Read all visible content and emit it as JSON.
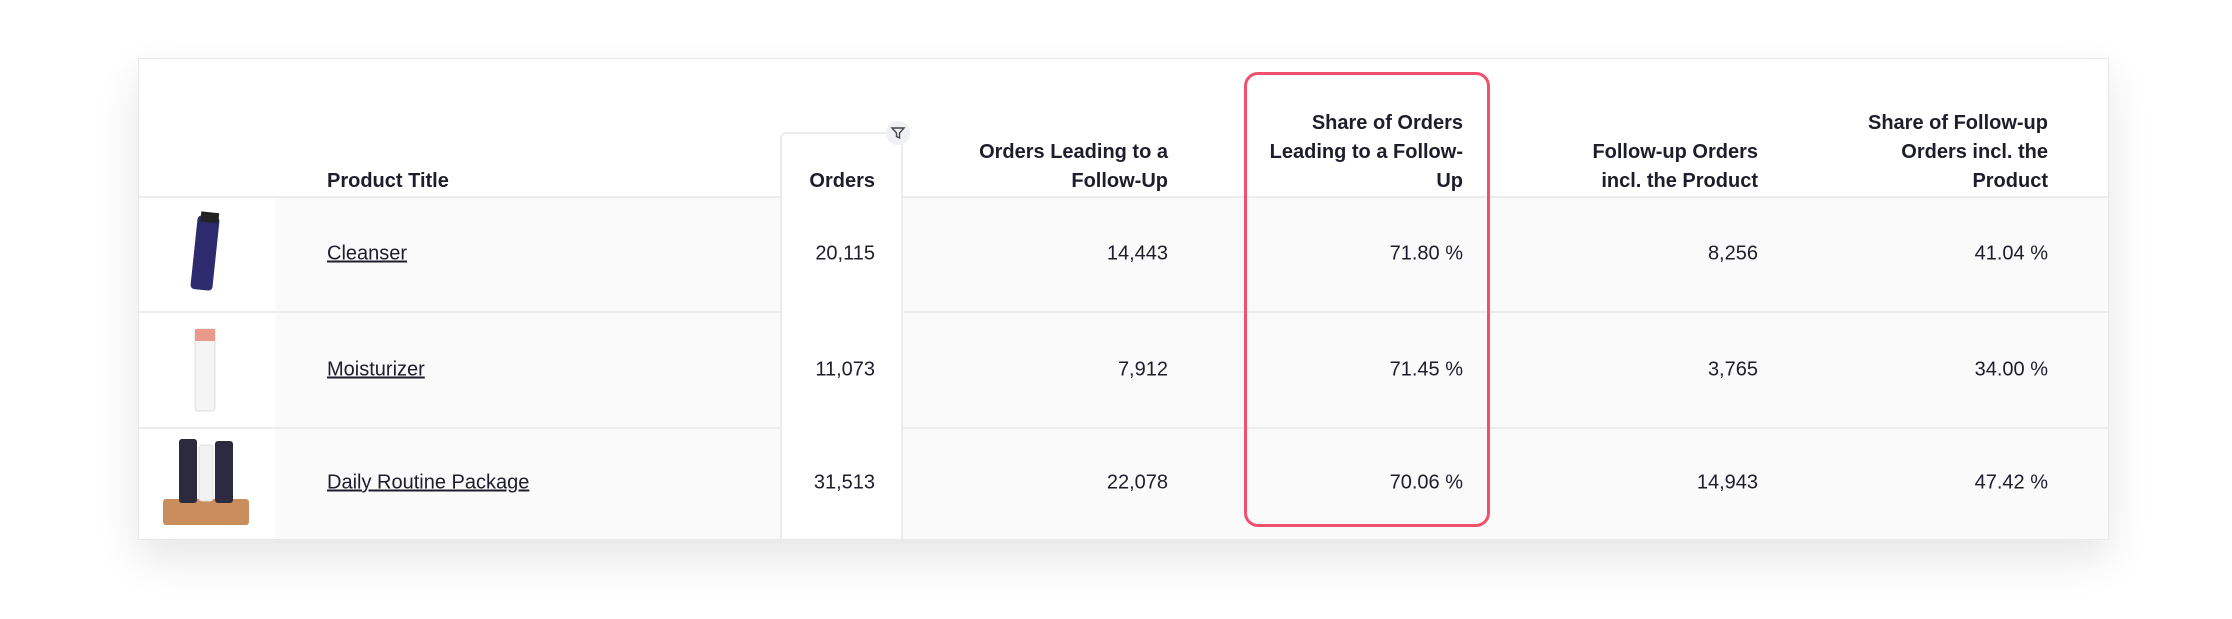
{
  "table": {
    "headers": [
      "Product Title",
      "Orders",
      "Orders Leading to a Follow-Up",
      "Share of Orders Leading to a Follow-Up",
      "Follow-up Orders incl. the Product",
      "Share of Follow-up Orders incl. the Product"
    ],
    "rows": [
      [
        "Cleanser",
        "20,115",
        "14,443",
        "71.80 %",
        "8,256",
        "41.04 %"
      ],
      [
        "Moisturizer",
        "11,073",
        "7,912",
        "71.45 %",
        "3,765",
        "34.00 %"
      ],
      [
        "Daily Routine Package",
        "31,513",
        "22,078",
        "70.06 %",
        "14,943",
        "47.42 %"
      ]
    ]
  }
}
